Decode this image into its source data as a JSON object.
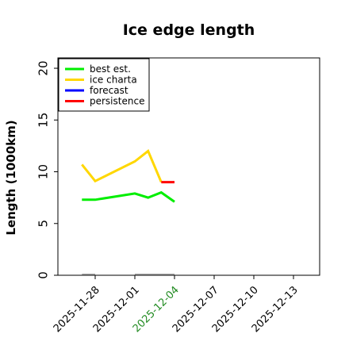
{
  "chart_data": {
    "type": "line",
    "title": "Ice edge length",
    "ylabel": "Length (1000km)",
    "xlabel": "",
    "ylim": [
      0,
      21
    ],
    "yticks": [
      "0",
      "5",
      "10",
      "15",
      "20"
    ],
    "grid": false,
    "legend_position": "top-left",
    "x_tick_labels": [
      {
        "label": "2025-11-28",
        "color": "#000000"
      },
      {
        "label": "2025-12-01",
        "color": "#000000"
      },
      {
        "label": "2025-12-04",
        "color": "#228b22"
      },
      {
        "label": "2025-12-07",
        "color": "#000000"
      },
      {
        "label": "2025-12-10",
        "color": "#000000"
      },
      {
        "label": "2025-12-13",
        "color": "#000000"
      }
    ],
    "series": [
      {
        "name": "best est.",
        "color": "#00ee00",
        "points": [
          {
            "x": "2025-11-27",
            "y": 7.3
          },
          {
            "x": "2025-11-28",
            "y": 7.3
          },
          {
            "x": "2025-12-01",
            "y": 7.9
          },
          {
            "x": "2025-12-02",
            "y": 7.5
          },
          {
            "x": "2025-12-03",
            "y": 8.0
          },
          {
            "x": "2025-12-04",
            "y": 7.1
          }
        ]
      },
      {
        "name": "ice charta",
        "color": "#ffd700",
        "points": [
          {
            "x": "2025-11-27",
            "y": 10.7
          },
          {
            "x": "2025-11-28",
            "y": 9.1
          },
          {
            "x": "2025-12-01",
            "y": 11.0
          },
          {
            "x": "2025-12-02",
            "y": 12.0
          },
          {
            "x": "2025-12-03",
            "y": 9.0
          }
        ]
      },
      {
        "name": "forecast",
        "color": "#0000ff",
        "points": []
      },
      {
        "name": "persistence",
        "color": "#ff0000",
        "points": [
          {
            "x": "2025-12-03",
            "y": 9.0
          },
          {
            "x": "2025-12-04",
            "y": 9.0
          }
        ]
      }
    ],
    "baseline_marks": {
      "color": "#808080",
      "y": 0,
      "ranges": [
        [
          "2025-11-27",
          "2025-11-28"
        ],
        [
          "2025-12-01",
          "2025-12-04"
        ]
      ]
    }
  }
}
